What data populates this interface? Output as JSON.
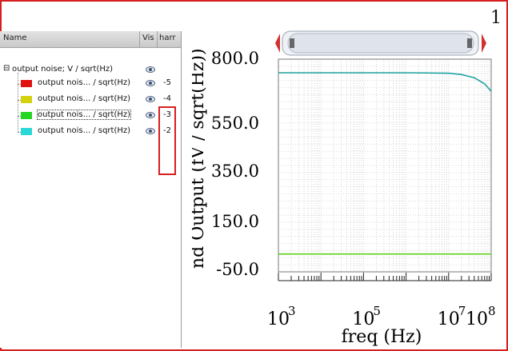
{
  "window": {
    "corner_number": "1"
  },
  "columns": {
    "name": "Name",
    "vis": "Vis",
    "harm": "harr"
  },
  "tree": {
    "root_label": "output noise; V / sqrt(Hz)",
    "items": [
      {
        "label": "output nois... / sqrt(Hz)",
        "color": "#e0140f",
        "harmonic": "-5"
      },
      {
        "label": "output nois... / sqrt(Hz)",
        "color": "#d4d10e",
        "harmonic": "-4"
      },
      {
        "label": "output nois... / sqrt(Hz)",
        "color": "#23d623",
        "harmonic": "-3"
      },
      {
        "label": "output nois... / sqrt(Hz)",
        "color": "#2ad8d8",
        "harmonic": "-2"
      }
    ]
  },
  "chart_data": {
    "type": "line",
    "xlabel": "freq (Hz)",
    "ylabel": "nd Output (fV / sqrt(Hz))",
    "x_scale": "log",
    "xlim": [
      1000,
      100000000
    ],
    "x_ticks": [
      {
        "base": "10",
        "exp": "3"
      },
      {
        "base": "10",
        "exp": "5"
      },
      {
        "base": "10",
        "exp": "7"
      },
      {
        "base": "10",
        "exp": "8"
      }
    ],
    "y_tick_labels": [
      "800.0",
      "550.0",
      "350.0",
      "150.0",
      "-50.0"
    ],
    "ylim": [
      -60,
      800
    ],
    "grid": true,
    "series": [
      {
        "color": "#1fa3a3",
        "x": [
          1000,
          1000000,
          10000000,
          20000000,
          40000000,
          70000000,
          100000000
        ],
        "y": [
          745,
          745,
          743,
          738,
          725,
          700,
          670
        ]
      },
      {
        "color": "#5fcf1c",
        "x": [
          1000,
          100000000
        ],
        "y": [
          12,
          12
        ]
      }
    ]
  }
}
